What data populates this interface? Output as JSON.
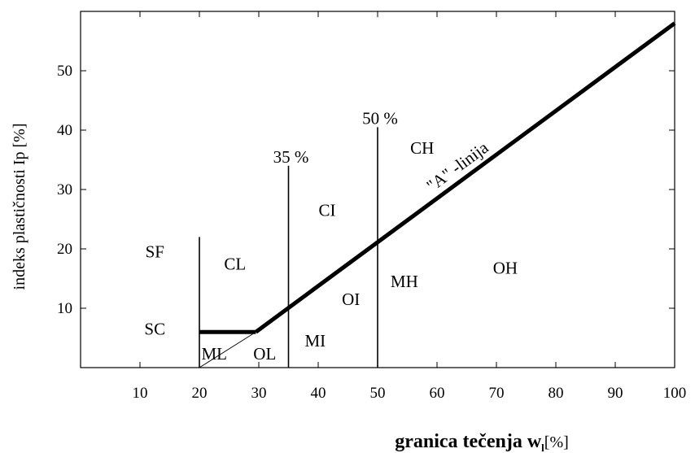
{
  "chart_data": {
    "type": "line",
    "xlabel": "granica tečenja w",
    "xlabel_sub": "l",
    "xlabel_unit": "[%]",
    "ylabel": "indeks plastičnosti Ip [%]",
    "xlim": [
      0,
      100
    ],
    "ylim": [
      0,
      60
    ],
    "x_ticks": [
      10,
      20,
      30,
      40,
      50,
      60,
      70,
      80,
      90,
      100
    ],
    "y_ticks": [
      10,
      20,
      30,
      40,
      50
    ],
    "a_line": {
      "label": "\"A\" -linija",
      "points": [
        [
          29.5,
          6
        ],
        [
          100,
          58
        ]
      ]
    },
    "base_segment": {
      "points": [
        [
          20,
          6
        ],
        [
          29.5,
          6
        ]
      ]
    },
    "vertical_lines": [
      {
        "x": 20,
        "y_top": 22,
        "label": ""
      },
      {
        "x": 35,
        "y_top": 34,
        "label": "35 %"
      },
      {
        "x": 50,
        "y_top": 40.5,
        "label": "50 %"
      }
    ],
    "diagonal_line": {
      "points": [
        [
          20,
          0
        ],
        [
          29.5,
          6
        ]
      ]
    },
    "regions": [
      {
        "label": "SF",
        "x": 12.5,
        "y": 19.5
      },
      {
        "label": "SC",
        "x": 12.5,
        "y": 6.5
      },
      {
        "label": "CL",
        "x": 26,
        "y": 17.5
      },
      {
        "label": "ML",
        "x": 22.5,
        "y": 2.3
      },
      {
        "label": "OL",
        "x": 31,
        "y": 2.3
      },
      {
        "label": "MI",
        "x": 39.5,
        "y": 4.5
      },
      {
        "label": "CI",
        "x": 41.5,
        "y": 26.5
      },
      {
        "label": "OI",
        "x": 45.5,
        "y": 11.5
      },
      {
        "label": "MH",
        "x": 54.5,
        "y": 14.5
      },
      {
        "label": "CH",
        "x": 57.5,
        "y": 37
      },
      {
        "label": "OH",
        "x": 71.5,
        "y": 16.8
      }
    ]
  }
}
